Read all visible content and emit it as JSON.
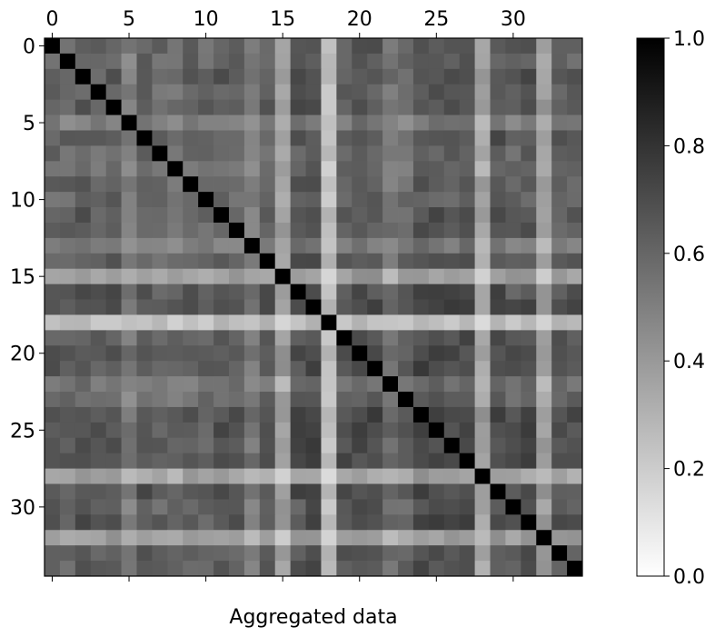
{
  "chart_data": {
    "type": "heatmap",
    "title": "",
    "xlabel": "Aggregated data",
    "ylabel": "",
    "n": 35,
    "x_ticks": [
      "0",
      "5",
      "10",
      "15",
      "20",
      "25",
      "30"
    ],
    "y_ticks": [
      "0",
      "5",
      "10",
      "15",
      "20",
      "25",
      "30"
    ],
    "x_tick_position": "top",
    "colormap": "gray_r",
    "colorbar": {
      "range": [
        0.0,
        1.0
      ],
      "ticks": [
        "0.0",
        "0.2",
        "0.4",
        "0.6",
        "0.8",
        "1.0"
      ],
      "placement": "right"
    },
    "row_means": [
      0.62,
      0.58,
      0.66,
      0.6,
      0.66,
      0.42,
      0.64,
      0.56,
      0.52,
      0.62,
      0.56,
      0.64,
      0.62,
      0.42,
      0.64,
      0.22,
      0.68,
      0.74,
      0.1,
      0.66,
      0.72,
      0.7,
      0.46,
      0.56,
      0.74,
      0.72,
      0.7,
      0.72,
      0.2,
      0.72,
      0.62,
      0.7,
      0.22,
      0.64,
      0.64
    ],
    "diagonal": 1.0
  }
}
